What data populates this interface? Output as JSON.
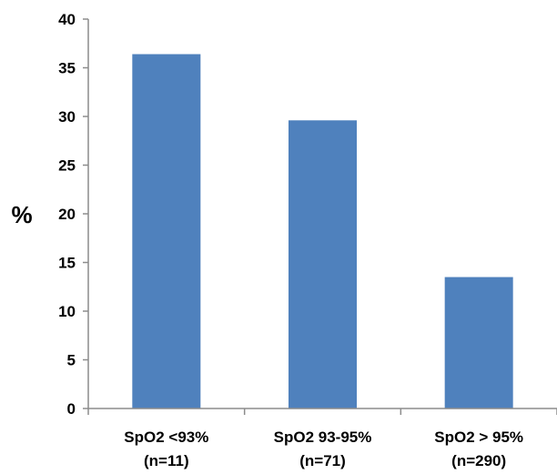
{
  "chart_data": {
    "type": "bar",
    "title": "",
    "xlabel": "",
    "ylabel": "%",
    "ylim": [
      0,
      40
    ],
    "yticks": [
      0,
      5,
      10,
      15,
      20,
      25,
      30,
      35,
      40
    ],
    "grid": false,
    "legend": "none",
    "bar_color": "#4f81bd",
    "categories": [
      {
        "label": "SpO2 <93%",
        "n_label": "(n=11)"
      },
      {
        "label": "SpO2 93-95%",
        "n_label": "(n=71)"
      },
      {
        "label": "SpO2 > 95%",
        "n_label": "(n=290)"
      }
    ],
    "values": [
      36.4,
      29.6,
      13.5
    ]
  }
}
